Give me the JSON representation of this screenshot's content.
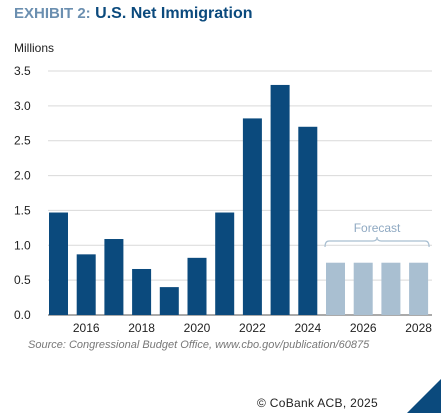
{
  "header": {
    "exhibit": "EXHIBIT 2:",
    "title": "U.S. Net Immigration",
    "units": "Millions"
  },
  "chart_data": {
    "type": "bar",
    "x": [
      2015,
      2016,
      2017,
      2018,
      2019,
      2020,
      2021,
      2022,
      2023,
      2024,
      2025,
      2026,
      2027,
      2028
    ],
    "values": [
      1.47,
      0.87,
      1.09,
      0.66,
      0.4,
      0.82,
      1.47,
      2.82,
      3.3,
      2.7,
      0.75,
      0.75,
      0.75,
      0.75
    ],
    "forecast_from": 2025,
    "forecast_label": "Forecast",
    "x_tick_labels": [
      "2016",
      "2018",
      "2020",
      "2022",
      "2024",
      "2026",
      "2028"
    ],
    "y_ticks": [
      "0.0",
      "0.5",
      "1.0",
      "1.5",
      "2.0",
      "2.5",
      "3.0",
      "3.5"
    ],
    "ylim": [
      0,
      3.5
    ],
    "grid": true,
    "colors": {
      "actual": "#0b4a7d",
      "forecast": "#a9bfd1",
      "grid": "#d9d9d9"
    }
  },
  "footer": {
    "source": "Source: Congressional Budget Office, www.cbo.gov/publication/60875",
    "copyright": "© CoBank ACB, 2025"
  }
}
